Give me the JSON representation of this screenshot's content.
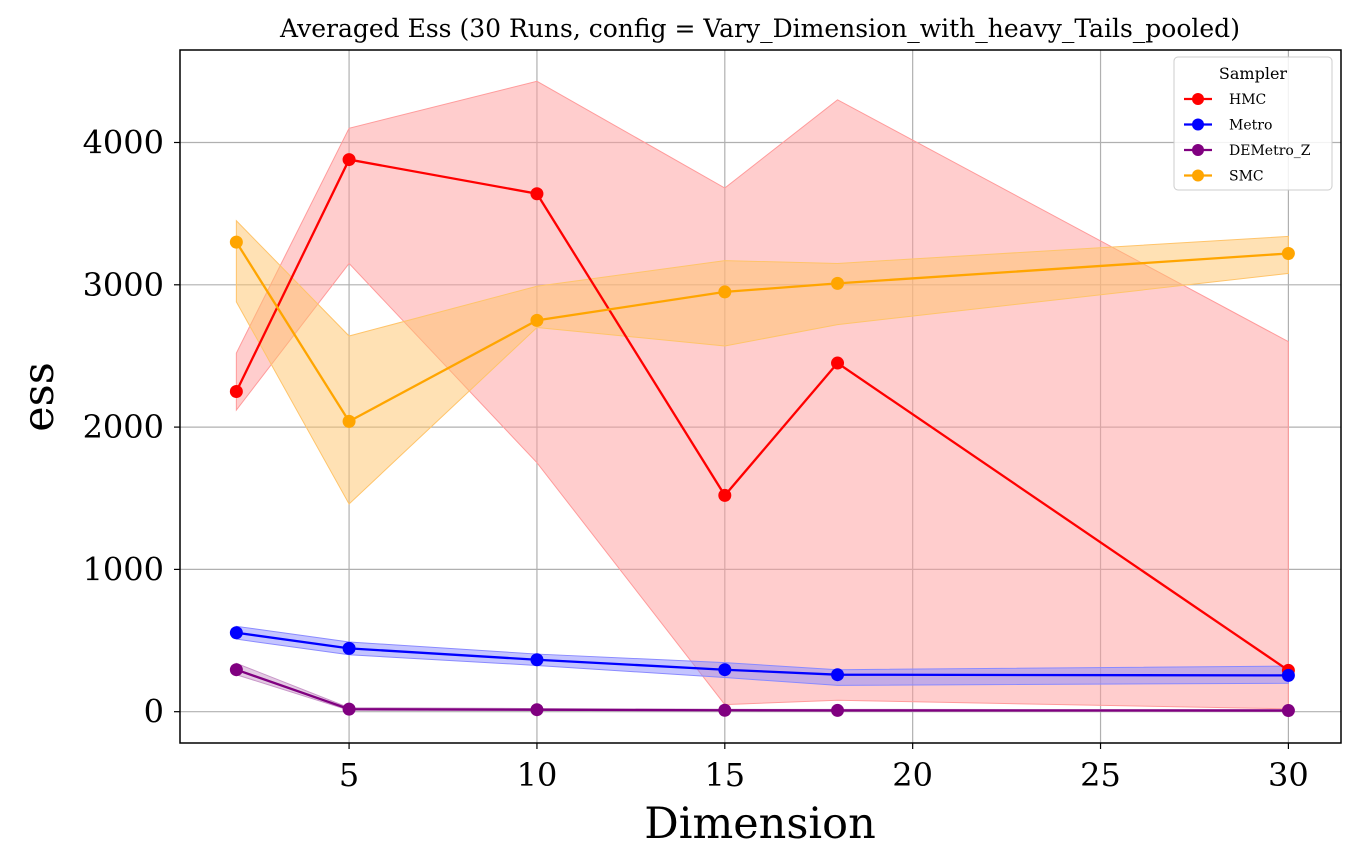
{
  "chart_data": {
    "type": "line",
    "title": "Averaged Ess (30 Runs, config = Vary_Dimension_with_heavy_Tails_pooled)",
    "xlabel": "Dimension",
    "ylabel": "ess",
    "x": [
      2,
      5,
      10,
      15,
      18,
      30
    ],
    "xlim": [
      0.5,
      31.4
    ],
    "ylim": [
      -220,
      4650
    ],
    "xticks": [
      5,
      10,
      15,
      20,
      25,
      30
    ],
    "yticks": [
      0,
      1000,
      2000,
      3000,
      4000
    ],
    "grid": true,
    "legend": {
      "title": "Sampler",
      "placement": "top-right"
    },
    "series": [
      {
        "name": "HMC",
        "color": "#ff0000",
        "band_color": "#ff9b9b",
        "values": [
          2250,
          3880,
          3640,
          1520,
          2450,
          290
        ],
        "lower": [
          2120,
          3150,
          1750,
          50,
          80,
          20
        ],
        "upper": [
          2520,
          4100,
          4430,
          3680,
          4300,
          2600
        ]
      },
      {
        "name": "Metro",
        "color": "#0000ff",
        "band_color": "#8a8aff",
        "values": [
          555,
          445,
          365,
          295,
          260,
          255
        ],
        "lower": [
          510,
          400,
          325,
          240,
          185,
          200
        ],
        "upper": [
          600,
          490,
          405,
          345,
          295,
          320
        ]
      },
      {
        "name": "DEMetro_Z",
        "color": "#800080",
        "band_color": "#c896c8",
        "values": [
          295,
          18,
          14,
          10,
          9,
          8
        ],
        "lower": [
          260,
          10,
          8,
          5,
          4,
          3
        ],
        "upper": [
          340,
          28,
          22,
          17,
          16,
          15
        ]
      },
      {
        "name": "SMC",
        "color": "#ffa500",
        "band_color": "#ffc46a",
        "values": [
          3300,
          2040,
          2750,
          2950,
          3010,
          3220
        ],
        "lower": [
          2880,
          1460,
          2700,
          2570,
          2720,
          3080
        ],
        "upper": [
          3450,
          2640,
          2990,
          3170,
          3150,
          3340
        ]
      }
    ]
  }
}
